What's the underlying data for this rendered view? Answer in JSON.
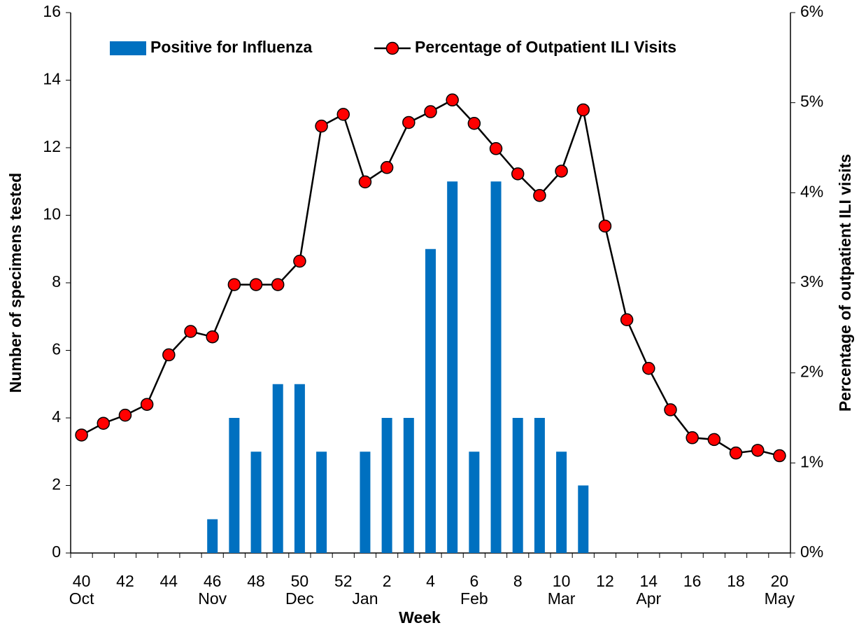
{
  "chart_data": {
    "type": "bar_line",
    "x_label": "Week",
    "y_label": "Number of specimens tested",
    "y2_label": "Percentage of outpatient ILI visits",
    "categories": [
      "40",
      null,
      "42",
      null,
      "44",
      null,
      "46",
      null,
      "48",
      null,
      "50",
      null,
      "52",
      null,
      "2",
      null,
      "4",
      null,
      "6",
      null,
      "8",
      null,
      "10",
      null,
      "12",
      null,
      "14",
      null,
      "16",
      null,
      "18",
      null,
      "20"
    ],
    "months": [
      "Oct",
      null,
      null,
      null,
      null,
      null,
      "Nov",
      null,
      null,
      null,
      "Dec",
      null,
      null,
      "Jan",
      null,
      null,
      null,
      null,
      "Feb",
      null,
      null,
      null,
      "Mar",
      null,
      null,
      null,
      "Apr",
      null,
      null,
      null,
      null,
      null,
      "May"
    ],
    "series": [
      {
        "name": "Positive for Influenza",
        "type": "bar",
        "color": "#0070c0",
        "values": [
          0,
          0,
          0,
          0,
          0,
          0,
          1,
          4,
          3,
          5,
          5,
          3,
          0,
          3,
          4,
          4,
          9,
          11,
          3,
          11,
          4,
          4,
          3,
          2,
          0,
          0,
          0,
          0,
          0,
          0,
          0,
          0,
          0
        ]
      },
      {
        "name": "Percentage of Outpatient ILI Visits",
        "type": "line",
        "axis": "y2",
        "color": "#000000",
        "marker_color": "#ff0000",
        "values": [
          1.31,
          1.44,
          1.53,
          1.65,
          2.2,
          2.46,
          2.4,
          2.98,
          2.98,
          2.98,
          3.24,
          4.74,
          4.87,
          4.12,
          4.28,
          4.78,
          4.9,
          5.03,
          4.77,
          4.49,
          4.21,
          3.97,
          4.24,
          4.92,
          3.63,
          2.59,
          2.05,
          1.59,
          1.28,
          1.26,
          1.11,
          1.14,
          1.08
        ]
      }
    ],
    "ylim": [
      0,
      16
    ],
    "yticks": [
      0,
      2,
      4,
      6,
      8,
      10,
      12,
      14,
      16
    ],
    "y2lim": [
      0,
      6
    ],
    "y2ticks": [
      {
        "value": 0,
        "label": "0%"
      },
      {
        "value": 1,
        "label": "1%"
      },
      {
        "value": 2,
        "label": "2%"
      },
      {
        "value": 3,
        "label": "3%"
      },
      {
        "value": 4,
        "label": "4%"
      },
      {
        "value": 5,
        "label": "5%"
      },
      {
        "value": 6,
        "label": "6%"
      }
    ],
    "grid": false,
    "legend": "top"
  }
}
